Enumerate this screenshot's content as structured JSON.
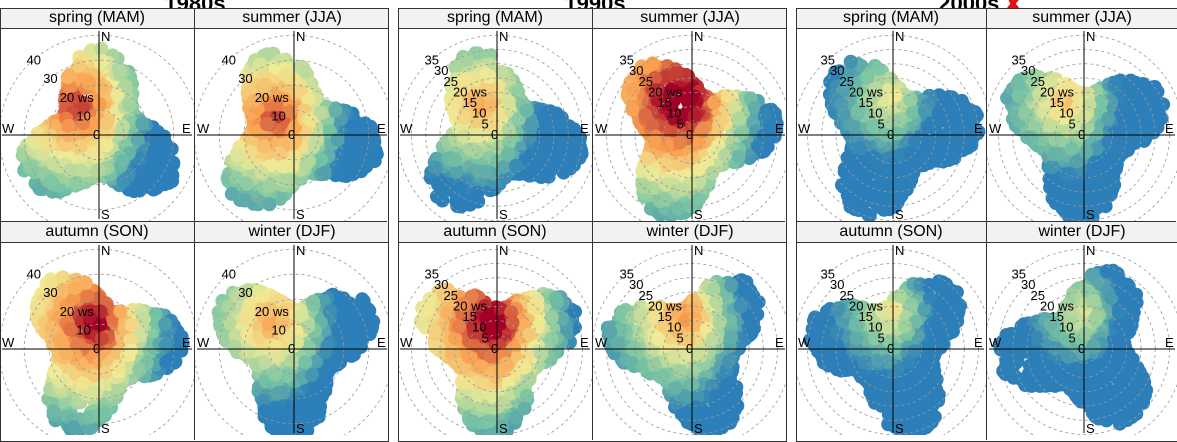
{
  "groups": [
    {
      "title": "1980s",
      "flag": ""
    },
    {
      "title": "1990s",
      "flag": ""
    },
    {
      "title": "2000s",
      "flag": "✘"
    }
  ],
  "strip_labels": [
    "spring (MAM)",
    "summer (JJA)",
    "autumn (SON)",
    "winter (DJF)"
  ],
  "compass": {
    "n": "N",
    "e": "E",
    "s": "S",
    "w": "W"
  },
  "chart_data": {
    "type": "heatmap",
    "subtype": "polar pollution rose by season and decade",
    "radial_label": "ws",
    "decades": [
      {
        "decade": "1980s",
        "radial_ticks": [
          0,
          10,
          20,
          30,
          40
        ]
      },
      {
        "decade": "1990s",
        "radial_ticks": [
          0,
          5,
          10,
          15,
          20,
          25,
          30,
          35
        ]
      },
      {
        "decade": "2000s",
        "radial_ticks": [
          0,
          5,
          10,
          15,
          20,
          25,
          30,
          35
        ]
      }
    ],
    "seasons": [
      "spring (MAM)",
      "summer (JJA)",
      "autumn (SON)",
      "winter (DJF)"
    ],
    "colors": {
      "high": "#a50026",
      "mid": "#f6e37a",
      "low": "#2c7fb8"
    }
  }
}
